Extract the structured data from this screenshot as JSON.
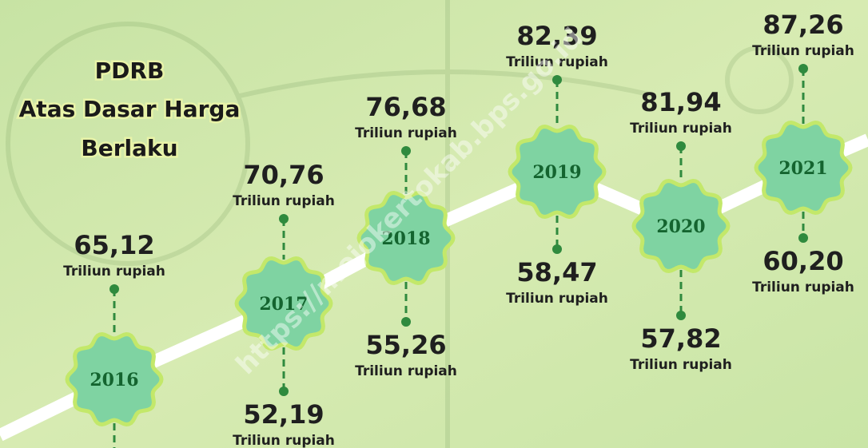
{
  "title": [
    "PDRB",
    "Atas Dasar Harga",
    "Berlaku"
  ],
  "timeline": [
    {
      "year": "2016",
      "top": {
        "value": "65,12",
        "unit": "Triliun rupiah"
      }
    },
    {
      "year": "2017",
      "top": {
        "value": "70,76",
        "unit": "Triliun rupiah"
      },
      "bottom": {
        "value": "52,19",
        "unit": "Triliun rupiah"
      }
    },
    {
      "year": "2018",
      "top": {
        "value": "76,68",
        "unit": "Triliun rupiah"
      },
      "bottom": {
        "value": "55,26",
        "unit": "Triliun rupiah"
      }
    },
    {
      "year": "2019",
      "top": {
        "value": "82,39",
        "unit": "Triliun rupiah"
      },
      "bottom": {
        "value": "58,47",
        "unit": "Triliun rupiah"
      }
    },
    {
      "year": "2020",
      "top": {
        "value": "81,94",
        "unit": "Triliun rupiah"
      },
      "bottom": {
        "value": "57,82",
        "unit": "Triliun rupiah"
      }
    },
    {
      "year": "2021",
      "top": {
        "value": "87,26",
        "unit": "Triliun rupiah"
      },
      "bottom": {
        "value": "60,20",
        "unit": "Triliun rupiah"
      }
    }
  ],
  "watermark": "https://mojokertokab.bps.go.id"
}
